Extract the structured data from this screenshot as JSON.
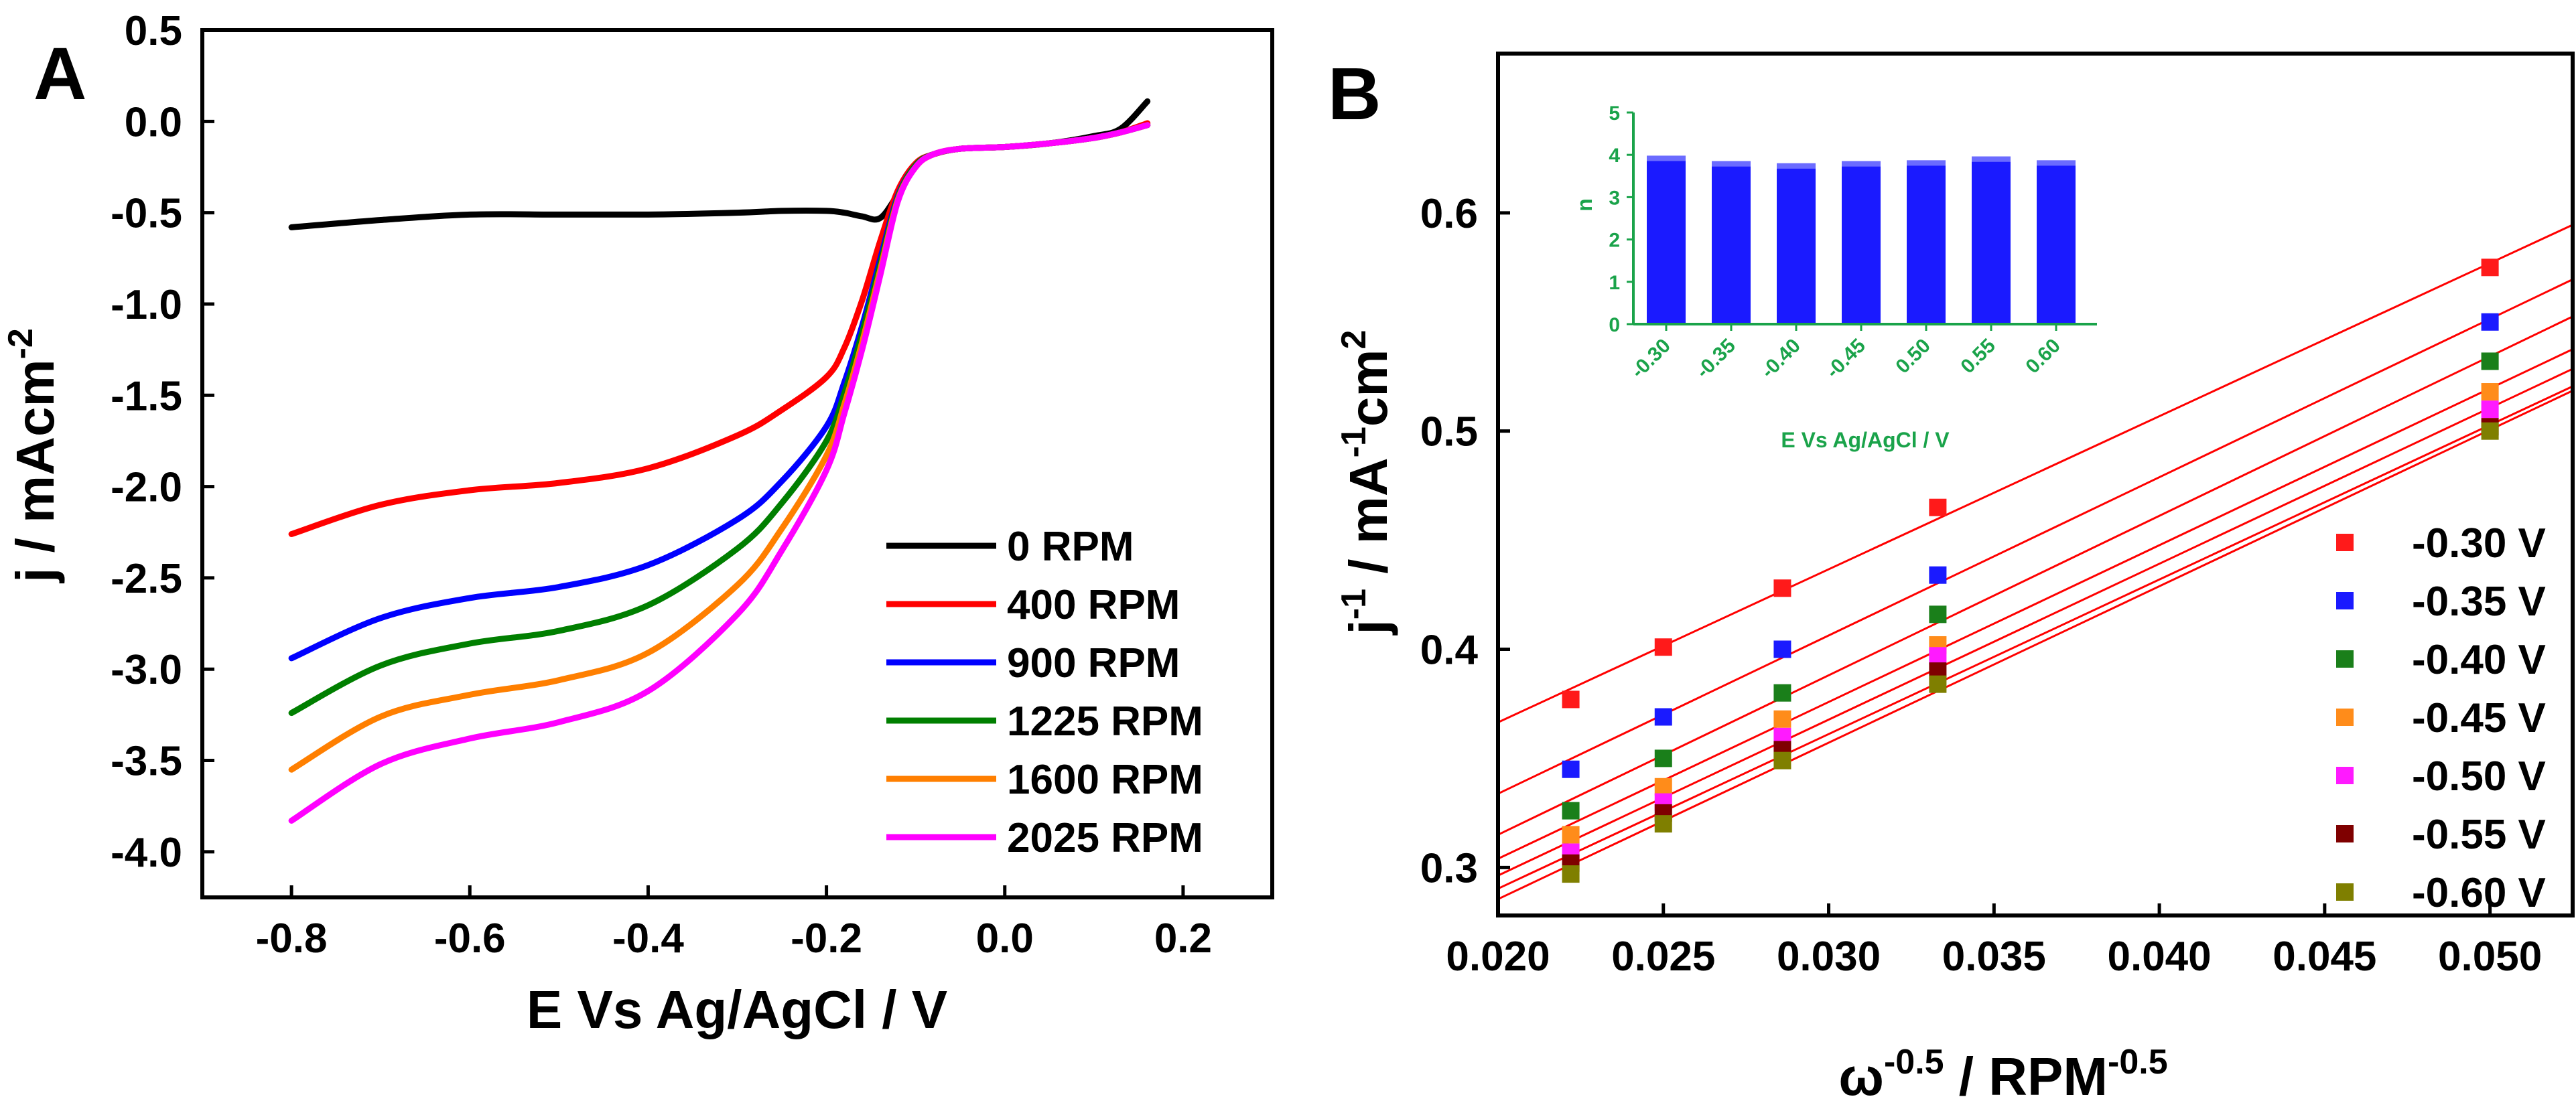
{
  "chart_data": [
    {
      "id": "A",
      "type": "line",
      "panel_label": "A",
      "xlabel": "E Vs Ag/AgCl / V",
      "ylabel_main": "j / mAcm",
      "ylabel_sup": "-2",
      "xlim": [
        -0.9,
        0.3
      ],
      "ylim": [
        -4.25,
        0.5
      ],
      "x_ticks": [
        -0.8,
        -0.6,
        -0.4,
        -0.2,
        0.0,
        0.2
      ],
      "x_tick_labels": [
        "-0.8",
        "-0.6",
        "-0.4",
        "-0.2",
        "0.0",
        "0.2"
      ],
      "y_ticks": [
        0.5,
        0.0,
        -0.5,
        -1.0,
        -1.5,
        -2.0,
        -2.5,
        -3.0,
        -3.5,
        -4.0
      ],
      "y_tick_labels": [
        "0.5",
        "0.0",
        "-0.5",
        "-1.0",
        "-1.5",
        "-2.0",
        "-2.5",
        "-3.0",
        "-3.5",
        "-4.0"
      ],
      "x": [
        -0.8,
        -0.7,
        -0.6,
        -0.5,
        -0.4,
        -0.3,
        -0.25,
        -0.2,
        -0.18,
        -0.16,
        -0.14,
        -0.12,
        -0.1,
        -0.08,
        -0.05,
        0.0,
        0.05,
        0.1,
        0.13,
        0.16
      ],
      "series": [
        {
          "name": "0 RPM",
          "label": "0 RPM",
          "color": "#000000",
          "values": [
            -0.58,
            -0.54,
            -0.51,
            -0.51,
            -0.51,
            -0.5,
            -0.49,
            -0.49,
            -0.5,
            -0.52,
            -0.53,
            -0.4,
            -0.24,
            -0.18,
            -0.15,
            -0.14,
            -0.12,
            -0.08,
            -0.04,
            0.11
          ]
        },
        {
          "name": "400 RPM",
          "label": "400 RPM",
          "color": "#ff0000",
          "values": [
            -2.26,
            -2.1,
            -2.02,
            -1.98,
            -1.9,
            -1.72,
            -1.58,
            -1.4,
            -1.24,
            -0.98,
            -0.66,
            -0.38,
            -0.23,
            -0.18,
            -0.15,
            -0.14,
            -0.12,
            -0.09,
            -0.06,
            -0.01
          ]
        },
        {
          "name": "900 RPM",
          "label": "900 RPM",
          "color": "#0000ff",
          "values": [
            -2.94,
            -2.72,
            -2.61,
            -2.55,
            -2.43,
            -2.18,
            -1.97,
            -1.67,
            -1.43,
            -1.12,
            -0.76,
            -0.41,
            -0.24,
            -0.18,
            -0.15,
            -0.14,
            -0.12,
            -0.09,
            -0.06,
            -0.02
          ]
        },
        {
          "name": "1225 RPM",
          "label": "1225 RPM",
          "color": "#007f00",
          "values": [
            -3.24,
            -2.98,
            -2.86,
            -2.79,
            -2.65,
            -2.34,
            -2.09,
            -1.75,
            -1.49,
            -1.16,
            -0.79,
            -0.42,
            -0.24,
            -0.18,
            -0.15,
            -0.14,
            -0.12,
            -0.09,
            -0.06,
            -0.02
          ]
        },
        {
          "name": "1600 RPM",
          "label": "1600 RPM",
          "color": "#ff7f00",
          "values": [
            -3.55,
            -3.26,
            -3.14,
            -3.06,
            -2.91,
            -2.54,
            -2.23,
            -1.83,
            -1.55,
            -1.21,
            -0.82,
            -0.43,
            -0.25,
            -0.18,
            -0.15,
            -0.14,
            -0.12,
            -0.09,
            -0.06,
            -0.02
          ]
        },
        {
          "name": "2025 RPM",
          "label": "2025 RPM",
          "color": "#ff00ff",
          "values": [
            -3.83,
            -3.52,
            -3.38,
            -3.29,
            -3.12,
            -2.7,
            -2.35,
            -1.91,
            -1.6,
            -1.25,
            -0.85,
            -0.44,
            -0.25,
            -0.18,
            -0.15,
            -0.14,
            -0.12,
            -0.09,
            -0.06,
            -0.02
          ]
        }
      ]
    },
    {
      "id": "B",
      "type": "scatter",
      "panel_label": "B",
      "xlabel_omega": "ω",
      "xlabel_omega_sup": "-0.5",
      "xlabel_rest": " / RPM",
      "xlabel_rest_sup": "-0.5",
      "ylabel_j": "j",
      "ylabel_j_sup": "-1",
      "ylabel_mid": " / mA",
      "ylabel_mid_sup": "-1",
      "ylabel_end": "cm",
      "ylabel_end_sup": "2",
      "xlim": [
        0.02,
        0.0525
      ],
      "ylim": [
        0.278,
        0.673
      ],
      "x_ticks": [
        0.02,
        0.025,
        0.03,
        0.035,
        0.04,
        0.045,
        0.05
      ],
      "x_tick_labels": [
        "0.020",
        "0.025",
        "0.030",
        "0.035",
        "0.040",
        "0.045",
        "0.050"
      ],
      "y_ticks": [
        0.3,
        0.4,
        0.5,
        0.6
      ],
      "y_tick_labels": [
        "0.3",
        "0.4",
        "0.5",
        "0.6"
      ],
      "x": [
        0.0222,
        0.025,
        0.0286,
        0.0333,
        0.05
      ],
      "fit_line_color": "#ff0000",
      "series": [
        {
          "name": "-0.30 V",
          "label": "-0.30 V",
          "color": "#ff1a1a",
          "values": [
            0.377,
            0.401,
            0.428,
            0.465,
            0.575
          ],
          "fit": [
            0.3665,
            0.5945
          ]
        },
        {
          "name": "-0.35 V",
          "label": "-0.35 V",
          "color": "#1a1aff",
          "values": [
            0.345,
            0.369,
            0.4,
            0.434,
            0.55
          ],
          "fit": [
            0.3338,
            0.5695
          ]
        },
        {
          "name": "-0.40 V",
          "label": "-0.40 V",
          "color": "#1a7f1a",
          "values": [
            0.326,
            0.35,
            0.38,
            0.416,
            0.532
          ],
          "fit": [
            0.315,
            0.5525
          ]
        },
        {
          "name": "-0.45 V",
          "label": "-0.45 V",
          "color": "#ff8c1a",
          "values": [
            0.315,
            0.337,
            0.368,
            0.402,
            0.518
          ],
          "fit": [
            0.304,
            0.5375
          ]
        },
        {
          "name": "-0.50 V",
          "label": "-0.50 V",
          "color": "#ff1aff",
          "values": [
            0.307,
            0.33,
            0.36,
            0.397,
            0.51
          ],
          "fit": [
            0.2963,
            0.5285
          ]
        },
        {
          "name": "-0.55 V",
          "label": "-0.55 V",
          "color": "#7f0000",
          "values": [
            0.302,
            0.325,
            0.354,
            0.39,
            0.502
          ],
          "fit": [
            0.2903,
            0.5205
          ]
        },
        {
          "name": "-0.60 V",
          "label": "-0.60 V",
          "color": "#7f7f00",
          "values": [
            0.297,
            0.32,
            0.349,
            0.384,
            0.5
          ],
          "fit": [
            0.2855,
            0.5185
          ]
        }
      ]
    },
    {
      "id": "B-inset",
      "type": "bar",
      "ylabel": "n",
      "xlabel": "E Vs Ag/AgCl / V",
      "categories": [
        "-0.30",
        "-0.35",
        "-0.40",
        "-0.45",
        "0.50",
        "0.55",
        "0.60"
      ],
      "values": [
        3.98,
        3.85,
        3.8,
        3.85,
        3.87,
        3.96,
        3.87
      ],
      "ylim": [
        0,
        5
      ],
      "y_ticks": [
        0,
        1,
        2,
        3,
        4,
        5
      ],
      "y_tick_labels": [
        "0",
        "1",
        "2",
        "3",
        "4",
        "5"
      ],
      "bar_color": "#1a1aff",
      "axis_color": "#1aa34a"
    }
  ]
}
